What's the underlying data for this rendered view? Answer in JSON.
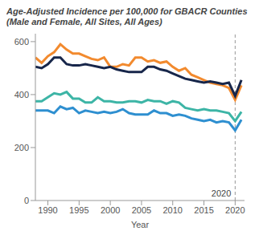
{
  "chart_data": {
    "type": "line",
    "title": "Age-Adjusted Incidence per 100,000 for GBACR Counties",
    "subtitle": "(Male and Female, All Sites, All Ages)",
    "x_label": "Year",
    "x": [
      1988,
      1989,
      1990,
      1991,
      1992,
      1993,
      1994,
      1995,
      1996,
      1997,
      1998,
      1999,
      2000,
      2001,
      2002,
      2003,
      2004,
      2005,
      2006,
      2007,
      2008,
      2009,
      2010,
      2011,
      2012,
      2013,
      2014,
      2015,
      2016,
      2017,
      2018,
      2019,
      2020,
      2021
    ],
    "series": [
      {
        "color": "#f28a2e",
        "values": [
          540,
          520,
          545,
          560,
          590,
          570,
          555,
          555,
          545,
          535,
          530,
          540,
          505,
          505,
          515,
          510,
          540,
          540,
          525,
          530,
          520,
          525,
          505,
          490,
          500,
          475,
          465,
          455,
          445,
          440,
          435,
          425,
          380,
          435
        ]
      },
      {
        "color": "#17264a",
        "values": [
          505,
          500,
          515,
          540,
          540,
          515,
          510,
          510,
          515,
          510,
          505,
          500,
          505,
          495,
          490,
          485,
          485,
          485,
          505,
          505,
          495,
          490,
          480,
          470,
          460,
          455,
          450,
          445,
          450,
          445,
          440,
          445,
          395,
          455
        ]
      },
      {
        "color": "#3db5a6",
        "values": [
          375,
          375,
          390,
          405,
          400,
          410,
          385,
          385,
          370,
          370,
          390,
          375,
          375,
          370,
          370,
          375,
          375,
          370,
          380,
          375,
          375,
          365,
          375,
          370,
          350,
          345,
          340,
          345,
          340,
          340,
          335,
          330,
          300,
          335
        ]
      },
      {
        "color": "#2e8fd0",
        "values": [
          340,
          340,
          340,
          330,
          355,
          345,
          350,
          330,
          340,
          335,
          330,
          335,
          330,
          335,
          345,
          330,
          325,
          325,
          325,
          340,
          330,
          330,
          320,
          325,
          320,
          310,
          305,
          300,
          305,
          295,
          300,
          295,
          265,
          305
        ]
      }
    ],
    "xlim": [
      1988,
      2021.5
    ],
    "ylim": [
      0,
      630
    ],
    "xticks": [
      1990,
      1995,
      2000,
      2005,
      2010,
      2015,
      2020
    ],
    "yticks": [
      0,
      200,
      400,
      600
    ],
    "grid": false,
    "annotations": [
      {
        "x": 2020,
        "label": "2020"
      }
    ]
  }
}
